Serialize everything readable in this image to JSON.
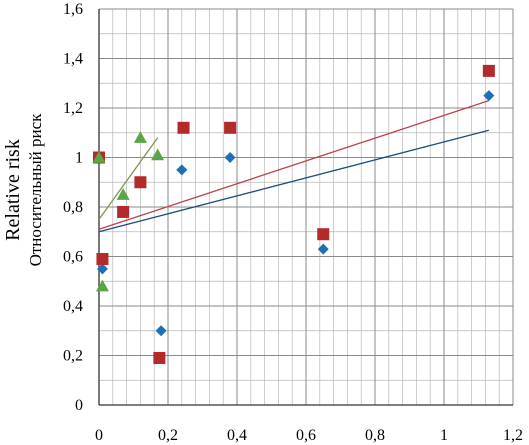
{
  "chart_data": {
    "type": "scatter",
    "title": "",
    "xlabel": "",
    "ylabel": "Relative risk",
    "ylabel2": "Относительный риск",
    "xlim": [
      0,
      1.2
    ],
    "ylim": [
      0,
      1.6
    ],
    "x_ticks": [
      "0",
      "0,2",
      "0,4",
      "0,6",
      "0,8",
      "1",
      "1,2"
    ],
    "y_ticks": [
      "0",
      "0,2",
      "0,4",
      "0,6",
      "0,8",
      "1",
      "1,2",
      "1,4",
      "1,6"
    ],
    "grid": true,
    "legend": "none",
    "series": [
      {
        "marker": "diamond",
        "color": "#1f6fb5",
        "points": [
          [
            0.01,
            0.55
          ],
          [
            0.18,
            0.3
          ],
          [
            0.24,
            0.95
          ],
          [
            0.38,
            1.0
          ],
          [
            0.65,
            0.63
          ],
          [
            1.13,
            1.25
          ]
        ],
        "trend": [
          [
            0,
            0.7
          ],
          [
            1.13,
            1.11
          ]
        ],
        "trend_color": "#1f4e79"
      },
      {
        "marker": "square",
        "color": "#b22a2a",
        "points": [
          [
            0.0,
            1.0
          ],
          [
            0.01,
            0.59
          ],
          [
            0.07,
            0.78
          ],
          [
            0.12,
            0.9
          ],
          [
            0.175,
            0.19
          ],
          [
            0.245,
            1.12
          ],
          [
            0.38,
            1.12
          ],
          [
            0.65,
            0.69
          ],
          [
            1.13,
            1.35
          ]
        ],
        "trend": [
          [
            0,
            0.71
          ],
          [
            1.13,
            1.23
          ]
        ],
        "trend_color": "#c0404a"
      },
      {
        "marker": "triangle",
        "color": "#5aa646",
        "points": [
          [
            0.0,
            1.0
          ],
          [
            0.01,
            0.48
          ],
          [
            0.07,
            0.85
          ],
          [
            0.12,
            1.08
          ],
          [
            0.17,
            1.01
          ]
        ],
        "trend": [
          [
            0,
            0.75
          ],
          [
            0.17,
            1.08
          ]
        ],
        "trend_color": "#7a9a4a"
      }
    ]
  }
}
